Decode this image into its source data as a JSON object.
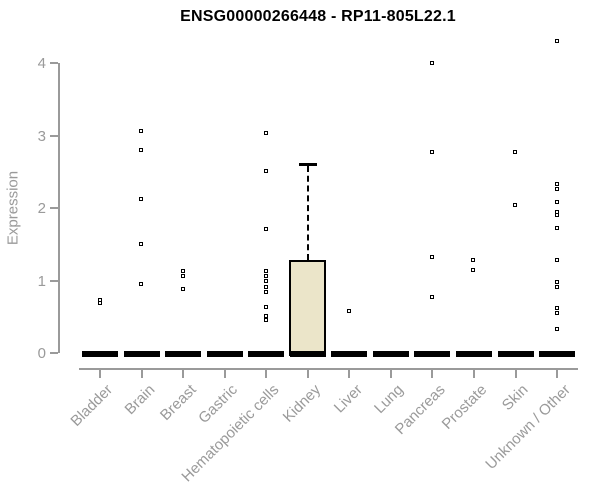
{
  "chart_data": {
    "type": "boxplot",
    "title": "ENSG00000266448 - RP11-805L22.1",
    "xlabel": "",
    "ylabel": "Expression",
    "ylim": [
      0,
      4.3
    ],
    "yticks": [
      0,
      1,
      2,
      3,
      4
    ],
    "grid": "off",
    "legend": "none",
    "colors": {
      "axis": "#9a9a9a",
      "text_muted": "#9a9a9a",
      "title": "#000000",
      "box_fill": "#ebe5c9",
      "box_border": "#000000",
      "marker": "#000000"
    },
    "categories": [
      "Bladder",
      "Brain",
      "Breast",
      "Gastric",
      "Hematopoietic cells",
      "Kidney",
      "Liver",
      "Lung",
      "Pancreas",
      "Prostate",
      "Skin",
      "Unknown / Other"
    ],
    "groups": [
      {
        "label": "Bladder",
        "median": 0,
        "q1": 0,
        "q3": 0,
        "whisker_hi": 0,
        "points": [
          0.72,
          0.68
        ]
      },
      {
        "label": "Brain",
        "median": 0,
        "q1": 0,
        "q3": 0,
        "whisker_hi": 0,
        "points": [
          3.05,
          2.8,
          2.12,
          1.5,
          0.94
        ]
      },
      {
        "label": "Breast",
        "median": 0,
        "q1": 0,
        "q3": 0,
        "whisker_hi": 0,
        "points": [
          1.12,
          1.05,
          0.87
        ]
      },
      {
        "label": "Gastric",
        "median": 0,
        "q1": 0,
        "q3": 0,
        "whisker_hi": 0,
        "points": []
      },
      {
        "label": "Hematopoietic cells",
        "median": 0,
        "q1": 0,
        "q3": 0,
        "whisker_hi": 0,
        "points": [
          3.03,
          2.51,
          1.7,
          1.13,
          1.06,
          0.98,
          0.91,
          0.84,
          0.63,
          0.5,
          0.45
        ]
      },
      {
        "label": "Kidney",
        "median": 0,
        "q1": 0,
        "q3": 1.28,
        "whisker_hi": 2.62,
        "points": []
      },
      {
        "label": "Liver",
        "median": 0,
        "q1": 0,
        "q3": 0,
        "whisker_hi": 0,
        "points": [
          0.57
        ]
      },
      {
        "label": "Lung",
        "median": 0,
        "q1": 0,
        "q3": 0,
        "whisker_hi": 0,
        "points": []
      },
      {
        "label": "Pancreas",
        "median": 0,
        "q1": 0,
        "q3": 0,
        "whisker_hi": 0,
        "points": [
          3.99,
          2.77,
          1.32,
          0.77
        ]
      },
      {
        "label": "Prostate",
        "median": 0,
        "q1": 0,
        "q3": 0,
        "whisker_hi": 0,
        "points": [
          1.27,
          1.14
        ]
      },
      {
        "label": "Skin",
        "median": 0,
        "q1": 0,
        "q3": 0,
        "whisker_hi": 0,
        "points": [
          2.76,
          2.03
        ]
      },
      {
        "label": "Unknown / Other",
        "median": 0,
        "q1": 0,
        "q3": 0,
        "whisker_hi": 0,
        "points": [
          4.29,
          2.32,
          2.26,
          2.07,
          1.94,
          1.89,
          1.72,
          1.28,
          0.97,
          0.91,
          0.62,
          0.55,
          0.32
        ]
      }
    ]
  }
}
